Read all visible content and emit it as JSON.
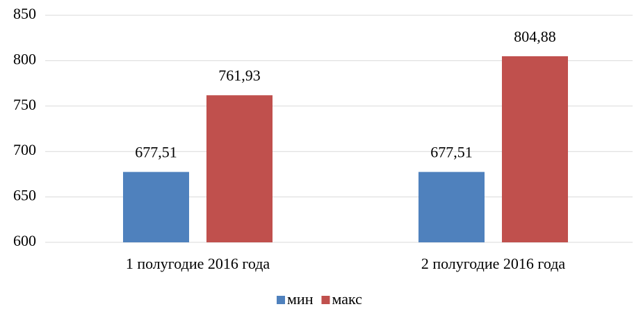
{
  "chart_data": {
    "type": "bar",
    "categories": [
      "1 полугодие 2016 года",
      "2 полугодие 2016 года"
    ],
    "series": [
      {
        "name": "мин",
        "color": "#4f81bd",
        "values": [
          677.51,
          677.51
        ],
        "value_labels": [
          "677,51",
          "677,51"
        ]
      },
      {
        "name": "макс",
        "color": "#c0504d",
        "values": [
          761.93,
          804.88
        ],
        "value_labels": [
          "761,93",
          "804,88"
        ]
      }
    ],
    "ylim": [
      600,
      850
    ],
    "yticks": [
      600,
      650,
      700,
      750,
      800,
      850
    ],
    "grid": true,
    "legend": "bottom"
  }
}
